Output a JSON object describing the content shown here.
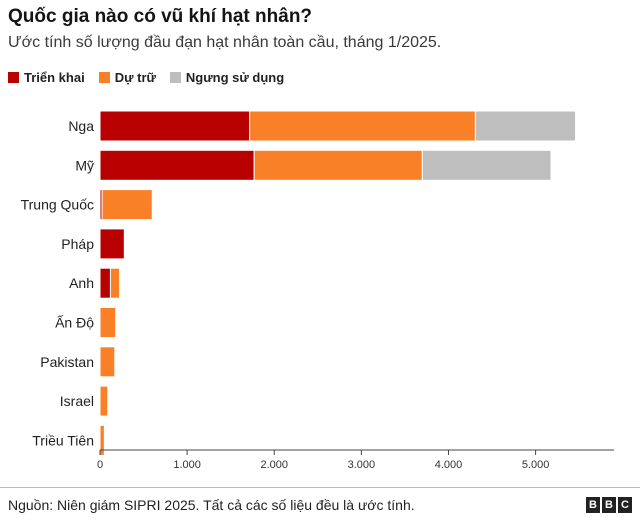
{
  "title": "Quốc gia nào có vũ khí hạt nhân?",
  "subtitle": "Ước tính số lượng đầu đạn hạt nhân toàn cầu, tháng 1/2025.",
  "source": "Nguồn: Niên giám SIPRI 2025. Tất cả các số liệu đều là ước tính.",
  "logo": [
    "B",
    "B",
    "C"
  ],
  "chart_data": {
    "type": "bar",
    "orientation": "horizontal",
    "stacked": true,
    "title": "Quốc gia nào có vũ khí hạt nhân?",
    "subtitle": "Ước tính số lượng đầu đạn hạt nhân toàn cầu, tháng 1/2025.",
    "xlabel": "",
    "ylabel": "",
    "xlim": [
      0,
      5900
    ],
    "ticks": [
      0,
      1000,
      2000,
      3000,
      4000,
      5000
    ],
    "tick_labels": [
      "0",
      "1.000",
      "2.000",
      "3.000",
      "4.000",
      "5.000"
    ],
    "legend_position": "top-left",
    "grid": false,
    "categories": [
      "Nga",
      "Mỹ",
      "Trung Quốc",
      "Pháp",
      "Anh",
      "Ấn Độ",
      "Pakistan",
      "Israel",
      "Triều Tiên"
    ],
    "series": [
      {
        "name": "Triển khai",
        "color": "#b80000",
        "values": [
          1718,
          1770,
          24,
          280,
          120,
          0,
          0,
          0,
          0
        ]
      },
      {
        "name": "Dự trữ",
        "color": "#fa8027",
        "values": [
          2591,
          1930,
          576,
          10,
          105,
          180,
          170,
          90,
          50
        ]
      },
      {
        "name": "Ngưng sử dụng",
        "color": "#bebebe",
        "values": [
          1150,
          1477,
          0,
          0,
          0,
          0,
          0,
          0,
          0
        ]
      }
    ]
  }
}
